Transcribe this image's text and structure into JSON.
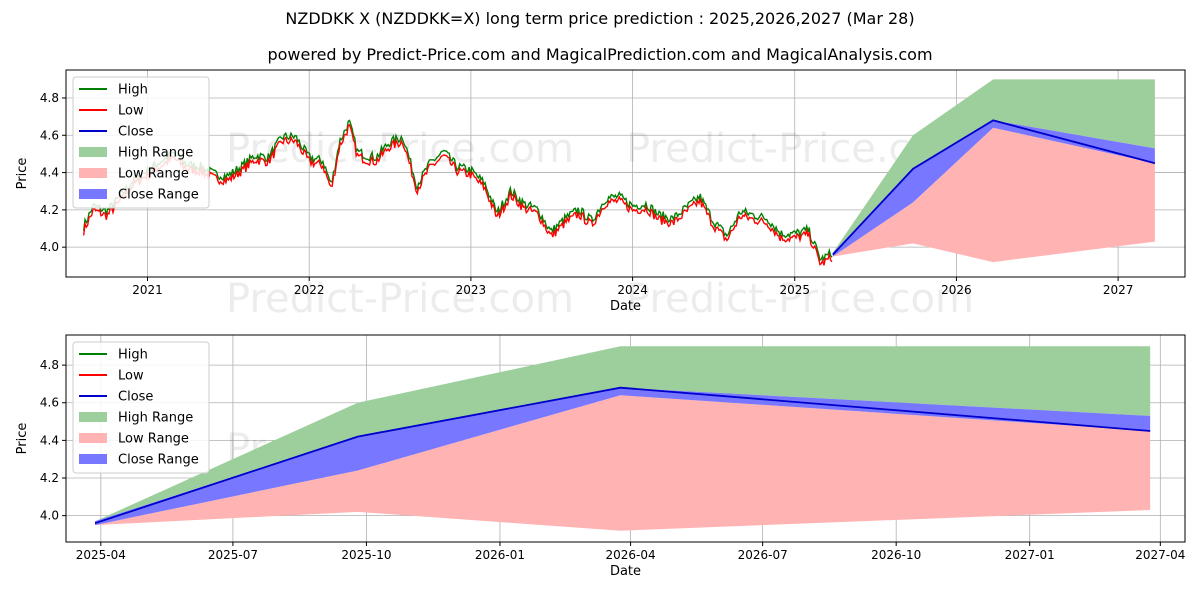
{
  "title": "NZDDKK X (NZDDKK=X) long term price prediction : 2025,2026,2027 (Mar 28)",
  "subtitle": "powered by Predict-Price.com and MagicalPrediction.com and MagicalAnalysis.com",
  "watermark": "Predict-Price.com",
  "colors": {
    "high": "#008000",
    "low": "#ff0000",
    "close": "#0000cc",
    "high_range": "#9ccf9c",
    "low_range": "#ffb3b3",
    "close_range": "#7777ff"
  },
  "chart_data": [
    {
      "type": "line",
      "xlabel": "Date",
      "ylabel": "Price",
      "xlim": [
        "2020-07-01",
        "2027-06-01"
      ],
      "ylim": [
        3.84,
        4.95
      ],
      "yticks": [
        4.0,
        4.2,
        4.4,
        4.6,
        4.8
      ],
      "ytick_labels": [
        "4.0",
        "4.2",
        "4.4",
        "4.6",
        "4.8"
      ],
      "xticks": [
        "2021-01-01",
        "2022-01-01",
        "2023-01-01",
        "2024-01-01",
        "2025-01-01",
        "2026-01-01",
        "2027-01-01"
      ],
      "xtick_labels": [
        "2021",
        "2022",
        "2023",
        "2024",
        "2025",
        "2026",
        "2027"
      ],
      "grid": true,
      "legend": "top-left",
      "legend_entries": [
        "High",
        "Low",
        "Close",
        "High Range",
        "Low Range",
        "Close Range"
      ],
      "history": {
        "dates": [
          "2020-08-10",
          "2020-09-01",
          "2020-10-01",
          "2020-11-01",
          "2020-12-01",
          "2021-01-01",
          "2021-02-01",
          "2021-03-01",
          "2021-04-01",
          "2021-05-01",
          "2021-06-01",
          "2021-07-01",
          "2021-08-01",
          "2021-09-01",
          "2021-10-01",
          "2021-11-01",
          "2021-12-01",
          "2022-01-01",
          "2022-02-01",
          "2022-02-20",
          "2022-03-10",
          "2022-04-01",
          "2022-04-20",
          "2022-05-10",
          "2022-06-01",
          "2022-07-01",
          "2022-08-01",
          "2022-09-01",
          "2022-10-01",
          "2022-11-01",
          "2022-12-01",
          "2023-01-01",
          "2023-02-01",
          "2023-03-01",
          "2023-04-01",
          "2023-05-01",
          "2023-06-01",
          "2023-07-01",
          "2023-08-01",
          "2023-09-01",
          "2023-10-01",
          "2023-11-01",
          "2023-12-01",
          "2024-01-01",
          "2024-02-01",
          "2024-03-01",
          "2024-04-01",
          "2024-05-01",
          "2024-06-01",
          "2024-07-01",
          "2024-08-01",
          "2024-09-01",
          "2024-10-01",
          "2024-11-01",
          "2024-12-01",
          "2025-01-01",
          "2025-02-01",
          "2025-03-01",
          "2025-03-28"
        ],
        "close": [
          4.1,
          4.21,
          4.18,
          4.26,
          4.35,
          4.4,
          4.45,
          4.49,
          4.43,
          4.42,
          4.38,
          4.37,
          4.42,
          4.48,
          4.47,
          4.58,
          4.58,
          4.47,
          4.45,
          4.32,
          4.55,
          4.66,
          4.5,
          4.48,
          4.47,
          4.55,
          4.58,
          4.32,
          4.44,
          4.5,
          4.42,
          4.4,
          4.33,
          4.17,
          4.29,
          4.22,
          4.19,
          4.07,
          4.14,
          4.19,
          4.13,
          4.25,
          4.26,
          4.21,
          4.22,
          4.16,
          4.14,
          4.2,
          4.26,
          4.13,
          4.05,
          4.18,
          4.16,
          4.14,
          4.06,
          4.06,
          4.08,
          3.92,
          3.96
        ]
      },
      "forecast": {
        "dates": [
          "2025-03-28",
          "2025-09-25",
          "2026-03-25",
          "2027-03-25"
        ],
        "close": [
          3.96,
          4.42,
          4.68,
          4.45
        ],
        "high_range_upper": [
          3.97,
          4.6,
          4.9,
          4.9
        ],
        "low_range_lower": [
          3.95,
          4.02,
          3.92,
          4.03
        ],
        "close_range_upper": [
          3.97,
          4.42,
          4.68,
          4.53
        ],
        "close_range_lower": [
          3.95,
          4.24,
          4.64,
          4.45
        ]
      }
    },
    {
      "type": "line",
      "xlabel": "Date",
      "ylabel": "Price",
      "xlim": [
        "2025-03-08",
        "2027-04-18"
      ],
      "ylim": [
        3.86,
        4.96
      ],
      "yticks": [
        4.0,
        4.2,
        4.4,
        4.6,
        4.8
      ],
      "ytick_labels": [
        "4.0",
        "4.2",
        "4.4",
        "4.6",
        "4.8"
      ],
      "xticks": [
        "2025-04-01",
        "2025-07-01",
        "2025-10-01",
        "2026-01-01",
        "2026-04-01",
        "2026-07-01",
        "2026-10-01",
        "2027-01-01",
        "2027-04-01"
      ],
      "xtick_labels": [
        "2025-04",
        "2025-07",
        "2025-10",
        "2026-01",
        "2026-04",
        "2026-07",
        "2026-10",
        "2027-01",
        "2027-04"
      ],
      "grid": true,
      "legend": "top-left",
      "legend_entries": [
        "High",
        "Low",
        "Close",
        "High Range",
        "Low Range",
        "Close Range"
      ],
      "forecast": {
        "dates": [
          "2025-03-28",
          "2025-09-25",
          "2026-03-25",
          "2027-03-25"
        ],
        "close": [
          3.96,
          4.42,
          4.68,
          4.45
        ],
        "high_range_upper": [
          3.97,
          4.6,
          4.9,
          4.9
        ],
        "low_range_lower": [
          3.95,
          4.02,
          3.92,
          4.03
        ],
        "close_range_upper": [
          3.97,
          4.42,
          4.68,
          4.53
        ],
        "close_range_lower": [
          3.95,
          4.24,
          4.64,
          4.45
        ]
      }
    }
  ]
}
